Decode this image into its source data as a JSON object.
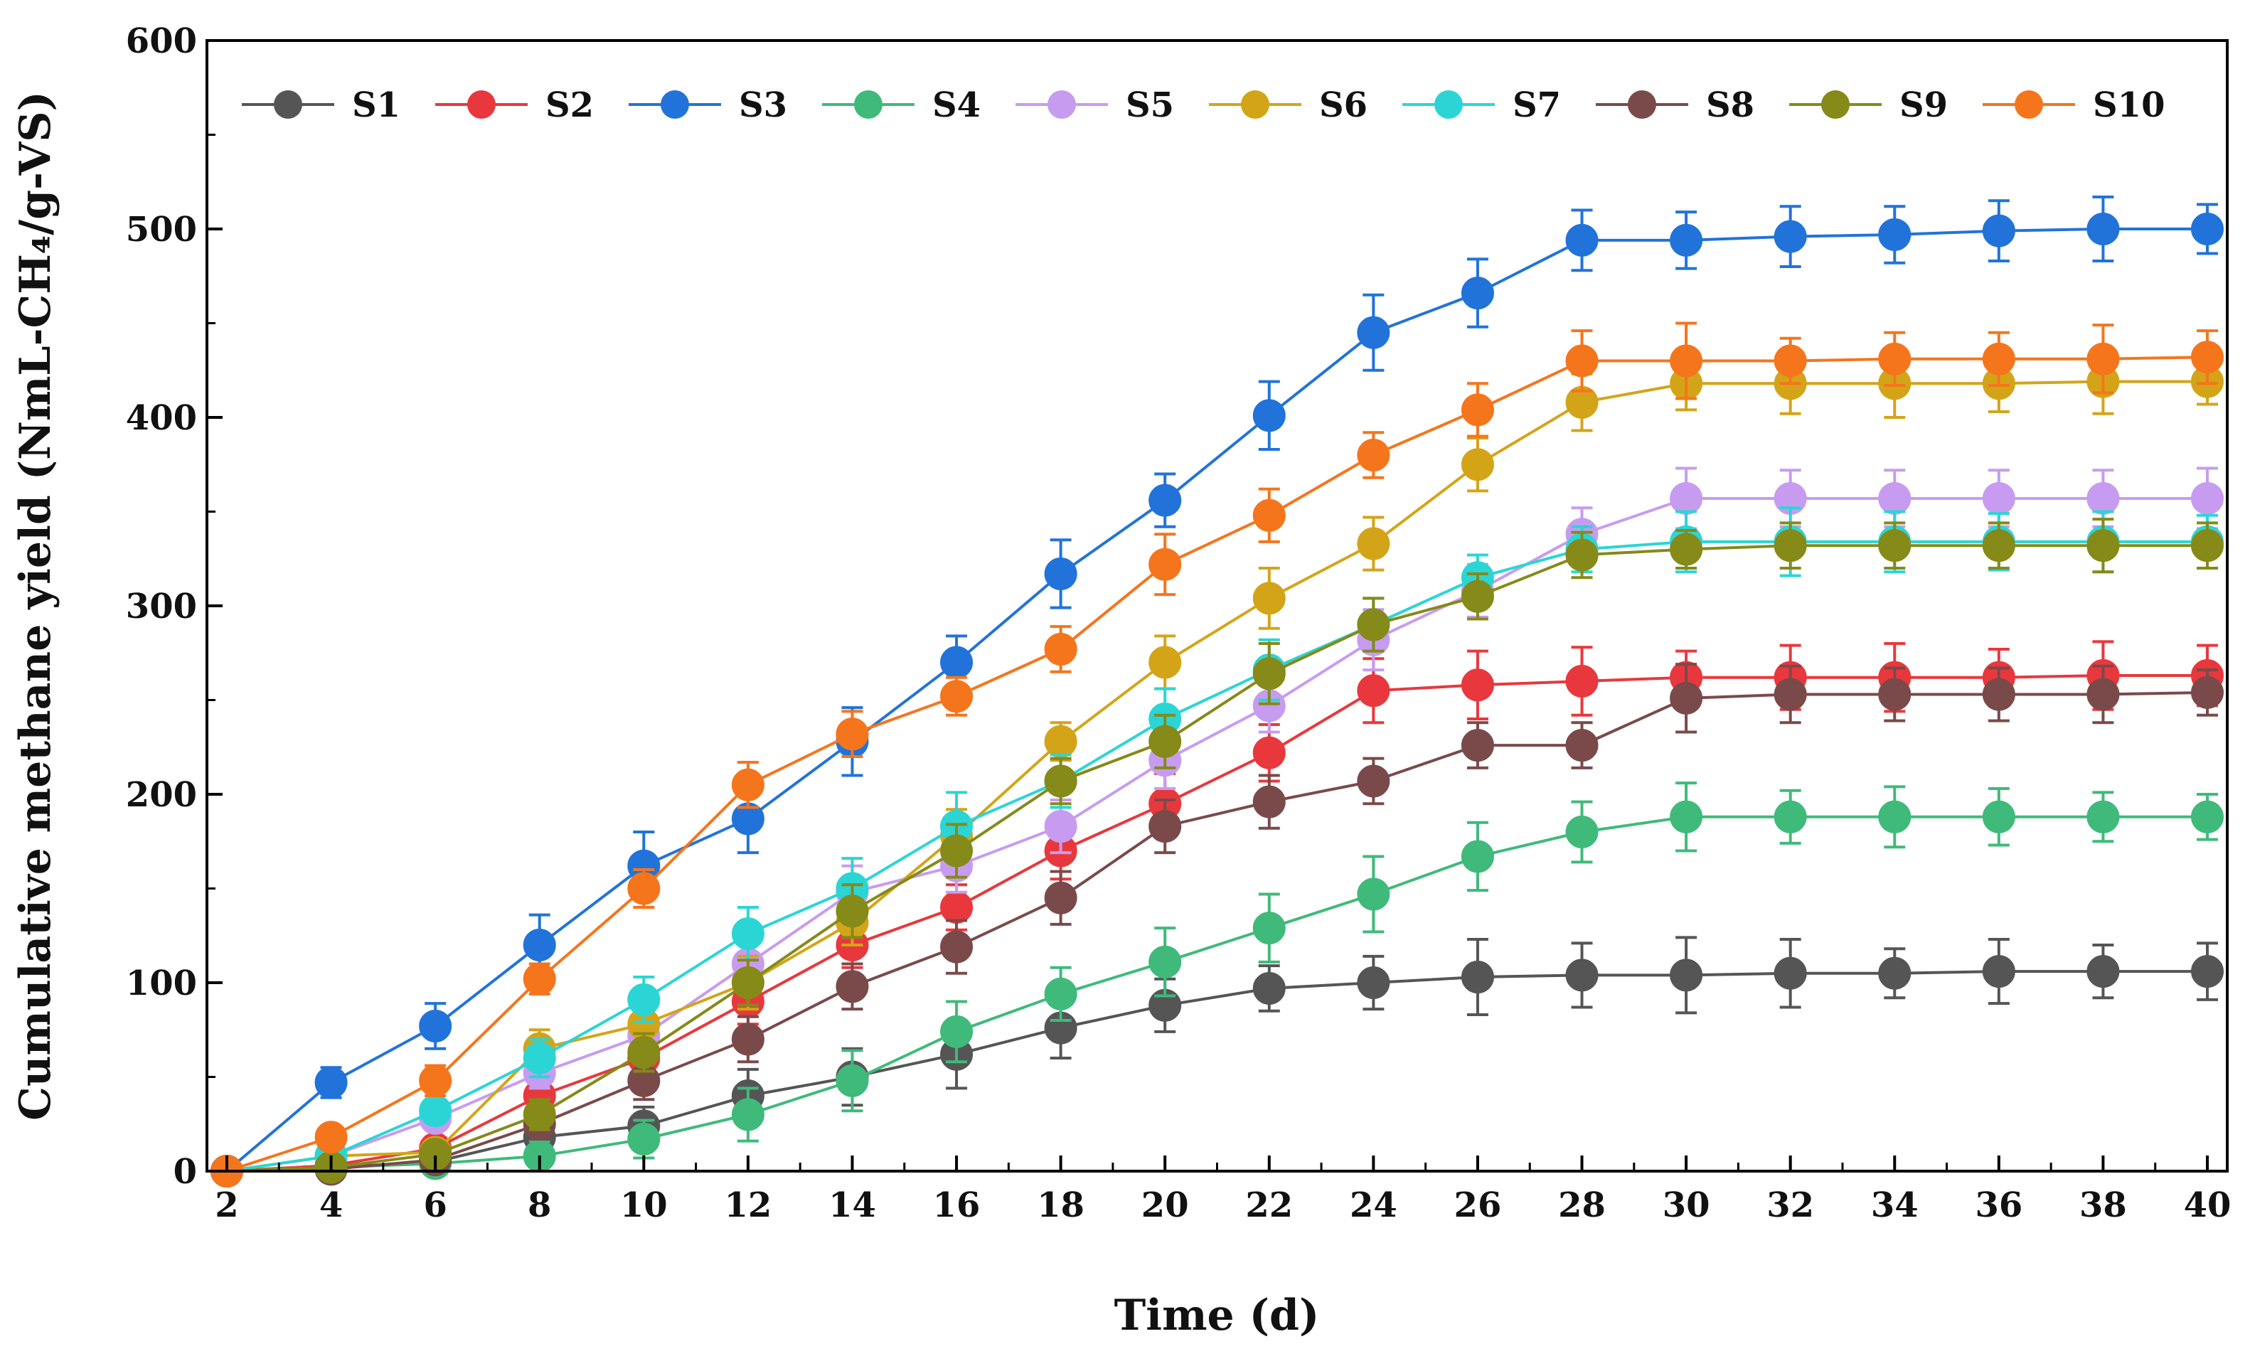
{
  "chart_data": {
    "type": "line",
    "title": "",
    "xlabel": "Time (d)",
    "ylabel": "Cumulative methane yield (NmL-CH₄/g-VS)",
    "x": [
      2,
      4,
      6,
      8,
      10,
      12,
      14,
      16,
      18,
      20,
      22,
      24,
      26,
      28,
      30,
      32,
      34,
      36,
      38,
      40
    ],
    "xlim": [
      2,
      40
    ],
    "ylim": [
      0,
      600
    ],
    "xticks": [
      "2",
      "4",
      "6",
      "8",
      "10",
      "12",
      "14",
      "16",
      "18",
      "20",
      "22",
      "24",
      "26",
      "28",
      "30",
      "32",
      "34",
      "36",
      "38",
      "40"
    ],
    "yticks": [
      "0",
      "100",
      "200",
      "300",
      "400",
      "500",
      "600"
    ],
    "legend_position": "top",
    "series": [
      {
        "name": "S1",
        "color": "#555555",
        "values": [
          0,
          2,
          5,
          18,
          24,
          40,
          50,
          62,
          76,
          88,
          97,
          100,
          103,
          104,
          104,
          105,
          105,
          106,
          106,
          106
        ],
        "errors": [
          3,
          5,
          6,
          8,
          10,
          14,
          15,
          18,
          16,
          14,
          12,
          14,
          20,
          17,
          20,
          18,
          13,
          17,
          14,
          15
        ]
      },
      {
        "name": "S2",
        "color": "#e8383d",
        "values": [
          0,
          3,
          12,
          40,
          60,
          90,
          120,
          140,
          170,
          195,
          222,
          255,
          258,
          260,
          262,
          262,
          262,
          262,
          263,
          263
        ],
        "errors": [
          3,
          4,
          6,
          8,
          10,
          12,
          12,
          12,
          15,
          16,
          15,
          17,
          18,
          18,
          14,
          17,
          18,
          15,
          18,
          16
        ]
      },
      {
        "name": "S3",
        "color": "#2173d9",
        "values": [
          0,
          47,
          77,
          120,
          162,
          187,
          228,
          270,
          317,
          356,
          401,
          445,
          466,
          494,
          494,
          496,
          497,
          499,
          500,
          500
        ],
        "errors": [
          3,
          8,
          12,
          16,
          18,
          18,
          18,
          14,
          18,
          14,
          18,
          20,
          18,
          16,
          15,
          16,
          15,
          16,
          17,
          13
        ]
      },
      {
        "name": "S4",
        "color": "#3fba7a",
        "values": [
          0,
          2,
          4,
          8,
          17,
          30,
          48,
          74,
          94,
          111,
          129,
          147,
          167,
          180,
          188,
          188,
          188,
          188,
          188,
          188
        ],
        "errors": [
          2,
          3,
          4,
          8,
          10,
          14,
          16,
          16,
          14,
          18,
          18,
          20,
          18,
          16,
          18,
          14,
          16,
          15,
          13,
          12
        ]
      },
      {
        "name": "S5",
        "color": "#c79cf0",
        "values": [
          0,
          8,
          28,
          52,
          72,
          110,
          148,
          162,
          183,
          218,
          247,
          282,
          308,
          338,
          357,
          357,
          357,
          357,
          357,
          357
        ],
        "errors": [
          3,
          5,
          6,
          8,
          10,
          12,
          14,
          14,
          14,
          15,
          14,
          16,
          14,
          14,
          16,
          15,
          15,
          15,
          15,
          16
        ]
      },
      {
        "name": "S6",
        "color": "#d4a418",
        "values": [
          0,
          8,
          10,
          65,
          78,
          100,
          132,
          178,
          228,
          270,
          304,
          333,
          375,
          408,
          418,
          418,
          418,
          418,
          419,
          419
        ],
        "errors": [
          3,
          4,
          6,
          10,
          12,
          14,
          12,
          14,
          10,
          14,
          16,
          14,
          14,
          15,
          14,
          16,
          18,
          15,
          17,
          12
        ]
      },
      {
        "name": "S7",
        "color": "#2bd5d5",
        "values": [
          0,
          8,
          32,
          60,
          91,
          126,
          150,
          183,
          207,
          240,
          266,
          290,
          315,
          330,
          334,
          334,
          334,
          334,
          334,
          334
        ],
        "errors": [
          3,
          5,
          6,
          10,
          12,
          14,
          16,
          18,
          14,
          16,
          16,
          14,
          12,
          12,
          16,
          18,
          16,
          15,
          16,
          14
        ]
      },
      {
        "name": "S8",
        "color": "#7a4a4a",
        "values": [
          0,
          1,
          6,
          25,
          48,
          70,
          98,
          119,
          145,
          183,
          196,
          207,
          226,
          226,
          251,
          253,
          253,
          253,
          253,
          254
        ],
        "errors": [
          2,
          3,
          4,
          8,
          10,
          12,
          12,
          14,
          14,
          14,
          14,
          12,
          12,
          12,
          18,
          15,
          14,
          14,
          15,
          12
        ]
      },
      {
        "name": "S9",
        "color": "#858a18",
        "values": [
          0,
          2,
          9,
          30,
          63,
          100,
          138,
          170,
          207,
          228,
          264,
          290,
          305,
          327,
          330,
          332,
          332,
          332,
          332,
          332
        ],
        "errors": [
          2,
          3,
          4,
          8,
          10,
          12,
          14,
          14,
          12,
          14,
          16,
          14,
          12,
          12,
          10,
          12,
          12,
          12,
          14,
          12
        ]
      },
      {
        "name": "S10",
        "color": "#f5751d",
        "values": [
          0,
          18,
          48,
          102,
          150,
          205,
          232,
          252,
          277,
          322,
          348,
          380,
          404,
          430,
          430,
          430,
          431,
          431,
          431,
          432
        ],
        "errors": [
          3,
          5,
          8,
          8,
          10,
          12,
          12,
          10,
          12,
          16,
          14,
          12,
          14,
          16,
          20,
          12,
          14,
          14,
          18,
          14
        ]
      }
    ]
  }
}
